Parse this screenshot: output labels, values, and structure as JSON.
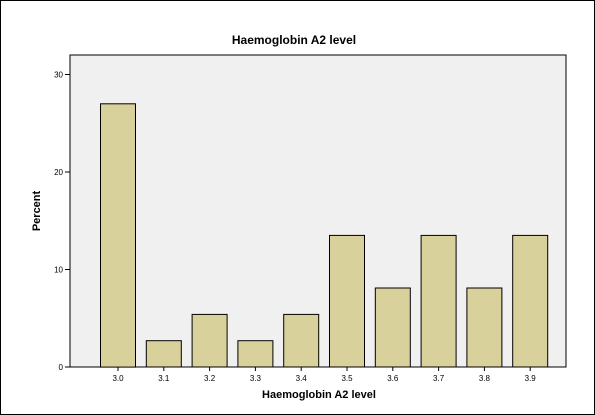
{
  "chart_data": {
    "type": "bar",
    "title": "Haemoglobin A2 level",
    "xlabel": "Haemoglobin A2 level",
    "ylabel": "Percent",
    "categories": [
      "3.0",
      "3.1",
      "3.2",
      "3.3",
      "3.4",
      "3.5",
      "3.6",
      "3.7",
      "3.8",
      "3.9"
    ],
    "values": [
      27.0,
      2.7,
      5.4,
      2.7,
      5.4,
      13.5,
      8.1,
      13.5,
      8.1,
      13.5
    ],
    "ylim": [
      0,
      32
    ],
    "yticks": [
      0,
      10,
      20,
      30
    ],
    "grid": false,
    "colors": {
      "bar_fill": "#d8d19c",
      "plot_background": "#f0f0f0",
      "border": "#000000"
    }
  }
}
